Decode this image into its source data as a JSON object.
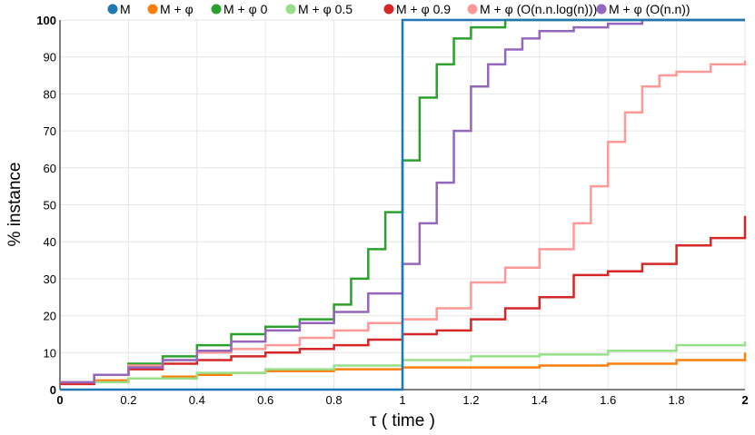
{
  "chart_data": {
    "type": "line",
    "step": true,
    "xlabel": "τ ( time )",
    "ylabel": "% instance",
    "xlim": [
      0,
      2
    ],
    "ylim": [
      0,
      100
    ],
    "x_ticks": [
      0,
      0.2,
      0.4,
      0.6,
      0.8,
      1,
      1.2,
      1.4,
      1.6,
      1.8,
      2
    ],
    "x_tick_labels": [
      "0",
      "0.2",
      "0.4",
      "0.6",
      "0.8",
      "1",
      "1.2",
      "1.4",
      "1.6",
      "1.8",
      "2"
    ],
    "y_ticks": [
      0,
      10,
      20,
      30,
      40,
      50,
      60,
      70,
      80,
      90,
      100
    ],
    "y_tick_labels": [
      "0",
      "10",
      "20",
      "30",
      "40",
      "50",
      "60",
      "70",
      "80",
      "90",
      "100"
    ],
    "grid": true,
    "legend_position": "top",
    "series": [
      {
        "name": "M",
        "color": "#1f77b4",
        "x": [
          0,
          1,
          1,
          2
        ],
        "y": [
          0,
          0,
          100,
          100
        ]
      },
      {
        "name": "M + φ",
        "color": "#ff7f0e",
        "x": [
          0,
          0.1,
          0.2,
          0.3,
          0.4,
          0.5,
          0.6,
          0.7,
          0.8,
          0.9,
          1.0,
          1.2,
          1.4,
          1.6,
          1.8,
          2.0
        ],
        "y": [
          2,
          2.5,
          3,
          3.5,
          4,
          4.5,
          5,
          5,
          5.5,
          5.5,
          6,
          6,
          6.5,
          7,
          8,
          10
        ]
      },
      {
        "name": "M + φ 0",
        "color": "#2ca02c",
        "x": [
          0,
          0.1,
          0.2,
          0.3,
          0.4,
          0.5,
          0.6,
          0.7,
          0.8,
          0.85,
          0.9,
          0.95,
          1.0,
          1.05,
          1.1,
          1.15,
          1.2,
          1.3,
          1.4,
          1.5,
          2.0
        ],
        "y": [
          2,
          4,
          7,
          9,
          12,
          15,
          17,
          19,
          23,
          30,
          38,
          48,
          62,
          79,
          88,
          95,
          98,
          100,
          100,
          100,
          100
        ]
      },
      {
        "name": "M + φ 0.5",
        "color": "#98df8a",
        "x": [
          0,
          0.2,
          0.4,
          0.6,
          0.8,
          1.0,
          1.2,
          1.4,
          1.6,
          1.8,
          2.0
        ],
        "y": [
          2,
          3,
          4.5,
          5.5,
          6.5,
          8,
          9,
          9.5,
          10.5,
          12,
          13
        ]
      },
      {
        "name": "M + φ 0.9",
        "color": "#d62728",
        "x": [
          0,
          0.1,
          0.2,
          0.3,
          0.4,
          0.5,
          0.6,
          0.7,
          0.8,
          0.9,
          1.0,
          1.1,
          1.2,
          1.3,
          1.4,
          1.5,
          1.6,
          1.7,
          1.8,
          1.9,
          2.0
        ],
        "y": [
          1.5,
          4,
          5.5,
          7,
          8,
          9,
          10,
          11,
          12,
          13.5,
          15,
          16,
          19,
          22,
          25,
          31,
          32,
          34,
          39,
          41,
          47
        ]
      },
      {
        "name": "M + φ (O(n.n.log(n)))",
        "color": "#ff9896",
        "x": [
          0,
          0.1,
          0.2,
          0.3,
          0.4,
          0.5,
          0.6,
          0.7,
          0.8,
          0.9,
          1.0,
          1.1,
          1.2,
          1.3,
          1.4,
          1.5,
          1.55,
          1.6,
          1.65,
          1.7,
          1.75,
          1.8,
          1.9,
          2.0
        ],
        "y": [
          2,
          4,
          6.5,
          8,
          10,
          11,
          12,
          14,
          16,
          18,
          19,
          22,
          29,
          33,
          38,
          45,
          55,
          67,
          75,
          82,
          85,
          86,
          88,
          89
        ]
      },
      {
        "name": "M + φ (O(n.n))",
        "color": "#9467bd",
        "x": [
          0,
          0.1,
          0.2,
          0.3,
          0.4,
          0.5,
          0.6,
          0.7,
          0.8,
          0.9,
          1.0,
          1.05,
          1.1,
          1.15,
          1.2,
          1.25,
          1.3,
          1.35,
          1.4,
          1.5,
          1.6,
          1.7,
          2.0
        ],
        "y": [
          2,
          4,
          6,
          8,
          10.5,
          13,
          16,
          18,
          21,
          26,
          34,
          45,
          56,
          70,
          82,
          88,
          92,
          95,
          97,
          98,
          99,
          100,
          100
        ]
      }
    ]
  }
}
